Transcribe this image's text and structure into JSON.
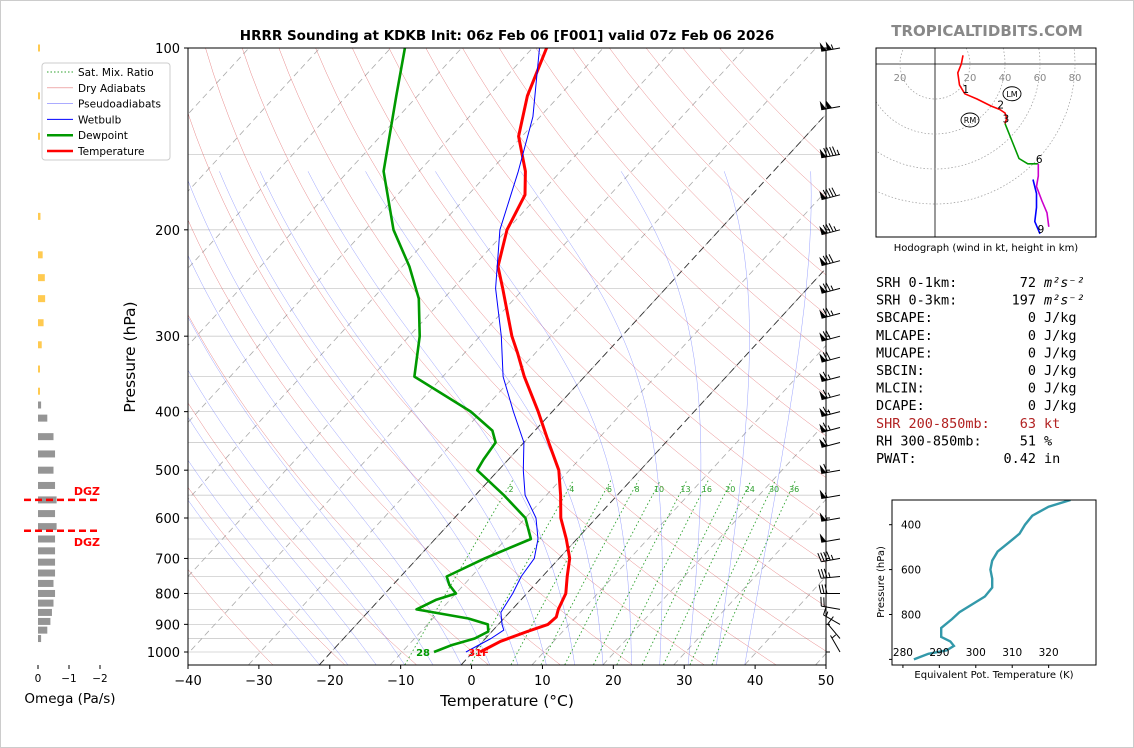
{
  "chart_data": {
    "type": "line",
    "title": "HRRR Sounding at KDKB Init: 06z Feb 06 [F001] valid 07z Feb 06 2026",
    "watermark": "TROPICALTIDBITS.COM",
    "xlabel": "Temperature (°C)",
    "ylabel": "Pressure (hPa)",
    "xlim": [
      -40,
      50
    ],
    "ylim": [
      1050,
      100
    ],
    "yscale": "log",
    "xticks": [
      "−40",
      "−30",
      "−20",
      "−10",
      "0",
      "10",
      "20",
      "30",
      "40",
      "50"
    ],
    "yticks": [
      "100",
      "200",
      "300",
      "400",
      "500",
      "600",
      "700",
      "800",
      "900",
      "1000"
    ],
    "legend_position": "top-left",
    "legend": [
      {
        "label": "Sat. Mix. Ratio",
        "color": "#2ca02c",
        "style": "dotted"
      },
      {
        "label": "Dry Adiabats",
        "color": "#d62728",
        "style": "solid-thin"
      },
      {
        "label": "Pseudoadiabats",
        "color": "#1f1fff",
        "style": "solid-thin"
      },
      {
        "label": "Wetbulb",
        "color": "#0000ff",
        "style": "solid"
      },
      {
        "label": "Dewpoint",
        "color": "#009900",
        "style": "solid-thick"
      },
      {
        "label": "Temperature",
        "color": "#ff0000",
        "style": "solid-thick"
      }
    ],
    "mixing_ratio_labels": [
      "2",
      "4",
      "6",
      "8",
      "10",
      "13",
      "16",
      "20",
      "24",
      "30",
      "36"
    ],
    "surface_labels": {
      "dewpoint": "28",
      "temperature": "31F"
    },
    "series": [
      {
        "name": "Temperature",
        "color": "#ff0000",
        "points": [
          [
            1000,
            1.0
          ],
          [
            960,
            2.5
          ],
          [
            925,
            5.0
          ],
          [
            900,
            7.0
          ],
          [
            875,
            7.2
          ],
          [
            850,
            6.5
          ],
          [
            800,
            5.5
          ],
          [
            750,
            3.5
          ],
          [
            700,
            1.5
          ],
          [
            650,
            -1.5
          ],
          [
            600,
            -5.0
          ],
          [
            550,
            -8.0
          ],
          [
            500,
            -11.5
          ],
          [
            450,
            -16.5
          ],
          [
            400,
            -22.0
          ],
          [
            350,
            -28.5
          ],
          [
            320,
            -32.5
          ],
          [
            300,
            -35.5
          ],
          [
            250,
            -43.0
          ],
          [
            230,
            -46.5
          ],
          [
            200,
            -50.0
          ],
          [
            175,
            -52.0
          ],
          [
            160,
            -55.0
          ],
          [
            140,
            -60.5
          ],
          [
            120,
            -64.5
          ],
          [
            100,
            -68.0
          ]
        ]
      },
      {
        "name": "Dewpoint",
        "color": "#009900",
        "points": [
          [
            1000,
            -5.5
          ],
          [
            975,
            -4.0
          ],
          [
            950,
            -1.5
          ],
          [
            925,
            -0.5
          ],
          [
            900,
            -1.5
          ],
          [
            880,
            -5.0
          ],
          [
            850,
            -13.5
          ],
          [
            820,
            -12.0
          ],
          [
            800,
            -10.0
          ],
          [
            775,
            -12.0
          ],
          [
            750,
            -13.5
          ],
          [
            700,
            -10.5
          ],
          [
            650,
            -6.5
          ],
          [
            600,
            -10.0
          ],
          [
            550,
            -16.0
          ],
          [
            500,
            -23.0
          ],
          [
            480,
            -23.5
          ],
          [
            450,
            -24.0
          ],
          [
            430,
            -26.0
          ],
          [
            400,
            -31.5
          ],
          [
            350,
            -44.0
          ],
          [
            300,
            -48.5
          ],
          [
            260,
            -53.5
          ],
          [
            230,
            -59.0
          ],
          [
            200,
            -66.0
          ],
          [
            160,
            -75.0
          ],
          [
            120,
            -83.0
          ],
          [
            100,
            -88.0
          ]
        ]
      },
      {
        "name": "Wetbulb",
        "color": "#0000ff",
        "points": [
          [
            1000,
            -1.0
          ],
          [
            950,
            0.8
          ],
          [
            920,
            1.5
          ],
          [
            900,
            0.5
          ],
          [
            860,
            -1.2
          ],
          [
            800,
            -2.0
          ],
          [
            750,
            -3.0
          ],
          [
            700,
            -3.5
          ],
          [
            650,
            -5.5
          ],
          [
            600,
            -8.5
          ],
          [
            550,
            -13.0
          ],
          [
            500,
            -16.5
          ],
          [
            450,
            -20.0
          ],
          [
            400,
            -25.5
          ],
          [
            350,
            -31.5
          ],
          [
            300,
            -37.0
          ],
          [
            250,
            -44.0
          ],
          [
            200,
            -51.0
          ],
          [
            160,
            -56.0
          ],
          [
            130,
            -61.0
          ],
          [
            100,
            -69.0
          ]
        ]
      }
    ],
    "omega": {
      "xlabel": "Omega (Pa/s)",
      "xticks": [
        "0",
        "−1",
        "−2"
      ],
      "xlim": [
        0.3,
        -2.0
      ],
      "dgz_label": "DGZ",
      "dgz_levels": [
        560,
        630
      ],
      "bars": [
        [
          100,
          0.02
        ],
        [
          120,
          0.06
        ],
        [
          140,
          0.05
        ],
        [
          190,
          0.08
        ],
        [
          220,
          0.15
        ],
        [
          240,
          0.22
        ],
        [
          260,
          0.23
        ],
        [
          285,
          0.18
        ],
        [
          310,
          0.12
        ],
        [
          340,
          0.05
        ],
        [
          370,
          0.03
        ],
        [
          390,
          -0.1
        ],
        [
          410,
          -0.3
        ],
        [
          440,
          -0.5
        ],
        [
          470,
          -0.55
        ],
        [
          500,
          -0.5
        ],
        [
          530,
          -0.55
        ],
        [
          560,
          -0.6
        ],
        [
          590,
          -0.55
        ],
        [
          620,
          -0.6
        ],
        [
          650,
          -0.55
        ],
        [
          680,
          -0.55
        ],
        [
          710,
          -0.55
        ],
        [
          740,
          -0.55
        ],
        [
          770,
          -0.5
        ],
        [
          800,
          -0.55
        ],
        [
          830,
          -0.5
        ],
        [
          860,
          -0.45
        ],
        [
          890,
          -0.4
        ],
        [
          920,
          -0.3
        ],
        [
          950,
          -0.1
        ]
      ]
    },
    "wind_barbs": [
      {
        "p": 100,
        "speed": 105,
        "dir": 260
      },
      {
        "p": 125,
        "speed": 100,
        "dir": 260
      },
      {
        "p": 150,
        "speed": 95,
        "dir": 260
      },
      {
        "p": 175,
        "speed": 90,
        "dir": 255
      },
      {
        "p": 200,
        "speed": 85,
        "dir": 255
      },
      {
        "p": 225,
        "speed": 80,
        "dir": 255
      },
      {
        "p": 250,
        "speed": 75,
        "dir": 255
      },
      {
        "p": 275,
        "speed": 75,
        "dir": 255
      },
      {
        "p": 300,
        "speed": 70,
        "dir": 255
      },
      {
        "p": 325,
        "speed": 70,
        "dir": 255
      },
      {
        "p": 350,
        "speed": 65,
        "dir": 255
      },
      {
        "p": 375,
        "speed": 65,
        "dir": 255
      },
      {
        "p": 400,
        "speed": 65,
        "dir": 255
      },
      {
        "p": 425,
        "speed": 65,
        "dir": 255
      },
      {
        "p": 450,
        "speed": 60,
        "dir": 255
      },
      {
        "p": 500,
        "speed": 60,
        "dir": 260
      },
      {
        "p": 550,
        "speed": 55,
        "dir": 260
      },
      {
        "p": 600,
        "speed": 55,
        "dir": 260
      },
      {
        "p": 650,
        "speed": 50,
        "dir": 260
      },
      {
        "p": 700,
        "speed": 45,
        "dir": 260
      },
      {
        "p": 750,
        "speed": 35,
        "dir": 265
      },
      {
        "p": 800,
        "speed": 30,
        "dir": 270
      },
      {
        "p": 850,
        "speed": 20,
        "dir": 280
      },
      {
        "p": 900,
        "speed": 15,
        "dir": 300
      },
      {
        "p": 950,
        "speed": 10,
        "dir": 320
      },
      {
        "p": 1000,
        "speed": 5,
        "dir": 330
      }
    ],
    "hodograph": {
      "caption": "Hodograph (wind in kt, height in km)",
      "ring_labels": [
        "20",
        "20",
        "40",
        "60",
        "80"
      ],
      "ring_label_values": [
        -20,
        20,
        40,
        60,
        80
      ],
      "rings": [
        20,
        40,
        60,
        80
      ],
      "storm_motion": [
        {
          "label": "LM",
          "u": 44,
          "v": -17
        },
        {
          "label": "RM",
          "u": 20,
          "v": -32
        }
      ],
      "segments": [
        {
          "color": "#ff0000",
          "points": [
            [
              16,
              5
            ],
            [
              15,
              0
            ],
            [
              13,
              -5
            ],
            [
              14,
              -12
            ],
            [
              17,
              -17
            ],
            [
              24,
              -20
            ],
            [
              32,
              -24
            ],
            [
              37,
              -26
            ]
          ],
          "labels": [
            {
              "t": "1",
              "u": 17,
              "v": -17
            },
            {
              "t": "2",
              "u": 37,
              "v": -26
            }
          ]
        },
        {
          "color": "#ff0000",
          "points": [
            [
              37,
              -26
            ],
            [
              40,
              -28
            ],
            [
              41,
              -31
            ],
            [
              40,
              -34
            ]
          ],
          "labels": [
            {
              "t": "3",
              "u": 40,
              "v": -34
            }
          ]
        },
        {
          "color": "#009900",
          "points": [
            [
              40,
              -34
            ],
            [
              44,
              -44
            ],
            [
              48,
              -54
            ],
            [
              53,
              -57
            ],
            [
              59,
              -57
            ]
          ],
          "labels": [
            {
              "t": "6",
              "u": 59,
              "v": -57
            }
          ]
        },
        {
          "color": "#cc00cc",
          "points": [
            [
              59,
              -57
            ],
            [
              59,
              -64
            ],
            [
              58,
              -70
            ],
            [
              61,
              -78
            ],
            [
              64,
              -85
            ],
            [
              65,
              -93
            ]
          ],
          "labels": []
        },
        {
          "color": "#0000ff",
          "points": [
            [
              56,
              -66
            ],
            [
              58,
              -74
            ],
            [
              58,
              -82
            ],
            [
              57,
              -90
            ],
            [
              60,
              -97
            ]
          ],
          "labels": [
            {
              "t": "9",
              "u": 60,
              "v": -97
            }
          ]
        }
      ]
    },
    "indices": [
      {
        "label": "SRH 0-1km:",
        "value": "72",
        "unit": "m²s⁻²",
        "color": "#000"
      },
      {
        "label": "SRH 0-3km:",
        "value": "197",
        "unit": "m²s⁻²",
        "color": "#000"
      },
      {
        "label": "SBCAPE:",
        "value": "0",
        "unit": "J/kg",
        "color": "#000"
      },
      {
        "label": "MLCAPE:",
        "value": "0",
        "unit": "J/kg",
        "color": "#000"
      },
      {
        "label": "MUCAPE:",
        "value": "0",
        "unit": "J/kg",
        "color": "#000"
      },
      {
        "label": "SBCIN:",
        "value": "0",
        "unit": "J/kg",
        "color": "#000"
      },
      {
        "label": "MLCIN:",
        "value": "0",
        "unit": "J/kg",
        "color": "#000"
      },
      {
        "label": "DCAPE:",
        "value": "0",
        "unit": "J/kg",
        "color": "#000"
      },
      {
        "label": "SHR 200-850mb:",
        "value": "63",
        "unit": "kt",
        "color": "#b22222"
      },
      {
        "label": "RH 300-850mb:",
        "value": "51",
        "unit": "%",
        "color": "#000"
      },
      {
        "label": "PWAT:",
        "value": "0.42",
        "unit": "in",
        "color": "#000"
      }
    ],
    "theta_e": {
      "xlabel": "Equivalent Pot. Temperature (K)",
      "ylabel": "Pressure (hPa)",
      "xticks": [
        "280",
        "290",
        "300",
        "310",
        "320"
      ],
      "yticks": [
        "400",
        "600",
        "800"
      ],
      "xlim": [
        277,
        333
      ],
      "ylim": [
        1025,
        290
      ],
      "color": "#3399aa",
      "points": [
        [
          1000,
          283
        ],
        [
          975,
          287
        ],
        [
          960,
          292
        ],
        [
          940,
          294
        ],
        [
          920,
          293
        ],
        [
          900,
          290.5
        ],
        [
          860,
          290.5
        ],
        [
          820,
          293.5
        ],
        [
          790,
          295.5
        ],
        [
          760,
          298.5
        ],
        [
          720,
          302.5
        ],
        [
          680,
          304.5
        ],
        [
          640,
          304.5
        ],
        [
          600,
          304
        ],
        [
          560,
          304.5
        ],
        [
          520,
          306
        ],
        [
          480,
          309
        ],
        [
          440,
          312
        ],
        [
          400,
          313.5
        ],
        [
          360,
          315.5
        ],
        [
          320,
          320
        ],
        [
          290,
          326
        ]
      ]
    }
  }
}
